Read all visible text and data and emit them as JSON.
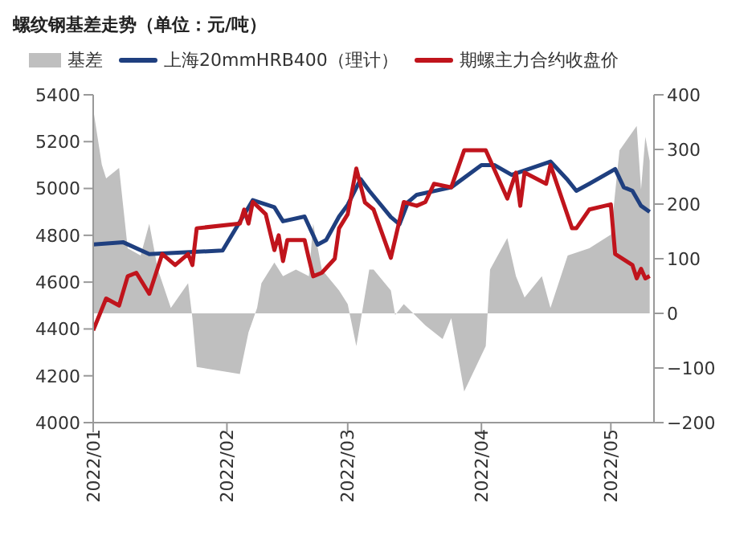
{
  "chart_data": {
    "type": "line",
    "title": "螺纹钢基差走势（单位：元/吨）",
    "xlim": [
      "2022-01-01",
      "2022-05-11"
    ],
    "xticks": [
      {
        "value": "2022-01-01",
        "label": "2022/01"
      },
      {
        "value": "2022-02-01",
        "label": "2022/02"
      },
      {
        "value": "2022-03-01",
        "label": "2022/03"
      },
      {
        "value": "2022-04-01",
        "label": "2022/04"
      },
      {
        "value": "2022-05-01",
        "label": "2022/05"
      }
    ],
    "ylim": [
      4000,
      5400
    ],
    "yticks": [
      4000,
      4200,
      4400,
      4600,
      4800,
      5000,
      5200,
      5400
    ],
    "y2lim": [
      -200,
      400
    ],
    "y2ticks": [
      {
        "value": -200,
        "label": "−200"
      },
      {
        "value": -100,
        "label": "−100"
      },
      0,
      100,
      200,
      300,
      400
    ],
    "legend": "top",
    "series": [
      {
        "name": "基差",
        "type": "area",
        "axis": "y2",
        "color": "#bfbfbf",
        "x": [
          "2022-01-01",
          "2022-01-03",
          "2022-01-04",
          "2022-01-07",
          "2022-01-09",
          "2022-01-12",
          "2022-01-14",
          "2022-01-16",
          "2022-01-19",
          "2022-01-23",
          "2022-01-24",
          "2022-01-25",
          "2022-02-04",
          "2022-02-06",
          "2022-02-08",
          "2022-02-09",
          "2022-02-12",
          "2022-02-14",
          "2022-02-17",
          "2022-02-20",
          "2022-02-21",
          "2022-02-23",
          "2022-02-27",
          "2022-03-01",
          "2022-03-03",
          "2022-03-06",
          "2022-03-07",
          "2022-03-11",
          "2022-03-12",
          "2022-03-14",
          "2022-03-19",
          "2022-03-23",
          "2022-03-25",
          "2022-03-28",
          "2022-04-02",
          "2022-04-03",
          "2022-04-07",
          "2022-04-09",
          "2022-04-11",
          "2022-04-15",
          "2022-04-17",
          "2022-04-21",
          "2022-04-26",
          "2022-05-01",
          "2022-05-03",
          "2022-05-07",
          "2022-05-08",
          "2022-05-09",
          "2022-05-10"
        ],
        "values": [
          374,
          272,
          247,
          266,
          119,
          106,
          164,
          80,
          10,
          55,
          -9,
          -98,
          -111,
          -35,
          10,
          55,
          93,
          68,
          80,
          68,
          164,
          80,
          42,
          17,
          -60,
          80,
          80,
          42,
          -3,
          17,
          -22,
          -47,
          -9,
          -143,
          -60,
          80,
          138,
          68,
          29,
          68,
          10,
          106,
          119,
          144,
          298,
          343,
          227,
          323,
          279
        ]
      },
      {
        "name": "上海20mmHRB400（理计）",
        "type": "line",
        "color": "#1f3f7f",
        "x": [
          "2022-01-01",
          "2022-01-08",
          "2022-01-14",
          "2022-01-31",
          "2022-02-07",
          "2022-02-12",
          "2022-02-14",
          "2022-02-19",
          "2022-02-22",
          "2022-02-24",
          "2022-02-27",
          "2022-03-01",
          "2022-03-04",
          "2022-03-06",
          "2022-03-11",
          "2022-03-13",
          "2022-03-15",
          "2022-03-17",
          "2022-03-25",
          "2022-04-01",
          "2022-04-04",
          "2022-04-08",
          "2022-04-17",
          "2022-04-21",
          "2022-04-23",
          "2022-04-26",
          "2022-05-02",
          "2022-05-04",
          "2022-05-06",
          "2022-05-08",
          "2022-05-10"
        ],
        "values": [
          4761,
          4770,
          4720,
          4735,
          4950,
          4920,
          4860,
          4880,
          4760,
          4780,
          4880,
          4930,
          5040,
          4990,
          4878,
          4847,
          4942,
          4973,
          5005,
          5100,
          5100,
          5058,
          5115,
          5036,
          4990,
          5020,
          5083,
          5005,
          4990,
          4926,
          4900
        ]
      },
      {
        "name": "期螺主力合约收盘价",
        "type": "line",
        "color": "#c0141c",
        "x": [
          "2022-01-01",
          "2022-01-04",
          "2022-01-07",
          "2022-01-09",
          "2022-01-11",
          "2022-01-14",
          "2022-01-17",
          "2022-01-20",
          "2022-01-23",
          "2022-01-24",
          "2022-01-25",
          "2022-02-04",
          "2022-02-05",
          "2022-02-06",
          "2022-02-07",
          "2022-02-10",
          "2022-02-12",
          "2022-02-13",
          "2022-02-14",
          "2022-02-15",
          "2022-02-19",
          "2022-02-20",
          "2022-02-21",
          "2022-02-23",
          "2022-02-26",
          "2022-02-27",
          "2022-03-01",
          "2022-03-03",
          "2022-03-05",
          "2022-03-07",
          "2022-03-11",
          "2022-03-14",
          "2022-03-17",
          "2022-03-19",
          "2022-03-21",
          "2022-03-25",
          "2022-03-28",
          "2022-04-02",
          "2022-04-07",
          "2022-04-09",
          "2022-04-10",
          "2022-04-11",
          "2022-04-16",
          "2022-04-17",
          "2022-04-22",
          "2022-04-23",
          "2022-04-26",
          "2022-05-01",
          "2022-05-02",
          "2022-05-06",
          "2022-05-07",
          "2022-05-08",
          "2022-05-09",
          "2022-05-10"
        ],
        "values": [
          4394,
          4530,
          4500,
          4625,
          4640,
          4550,
          4720,
          4673,
          4720,
          4673,
          4830,
          4850,
          4910,
          4850,
          4943,
          4890,
          4737,
          4800,
          4690,
          4780,
          4780,
          4700,
          4625,
          4640,
          4700,
          4830,
          4890,
          5085,
          4940,
          4910,
          4704,
          4942,
          4926,
          4942,
          5020,
          5005,
          5163,
          5163,
          4957,
          5068,
          4926,
          5068,
          5020,
          5100,
          4830,
          4830,
          4910,
          4932,
          4720,
          4673,
          4616,
          4657,
          4616,
          4626
        ]
      }
    ]
  }
}
